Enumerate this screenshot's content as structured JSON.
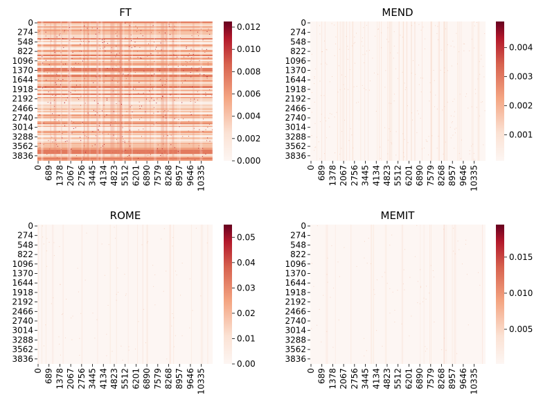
{
  "chart_data": [
    {
      "type": "heatmap",
      "title": "FT",
      "y_ticks": [
        "0",
        "274",
        "548",
        "822",
        "1096",
        "1370",
        "1644",
        "1918",
        "2192",
        "2466",
        "2740",
        "3014",
        "3288",
        "3562",
        "3836"
      ],
      "x_ticks": [
        "0",
        "689",
        "1378",
        "2067",
        "2756",
        "3445",
        "4134",
        "4823",
        "5512",
        "6201",
        "6890",
        "7579",
        "8268",
        "8957",
        "9646",
        "10335"
      ],
      "rows": 4096,
      "cols": 10900,
      "colorbar": {
        "ticks": [
          "0.000",
          "0.002",
          "0.004",
          "0.006",
          "0.008",
          "0.010",
          "0.012"
        ],
        "tick_values": [
          0,
          0.002,
          0.004,
          0.006,
          0.008,
          0.01,
          0.012
        ],
        "range": [
          0,
          0.0125
        ]
      },
      "colormap": "RdBu_r (upper half)",
      "density": "high"
    },
    {
      "type": "heatmap",
      "title": "MEND",
      "y_ticks": [
        "0",
        "274",
        "548",
        "822",
        "1096",
        "1370",
        "1644",
        "1918",
        "2192",
        "2466",
        "2740",
        "3014",
        "3288",
        "3562",
        "3836"
      ],
      "x_ticks": [
        "0",
        "689",
        "1378",
        "2067",
        "2756",
        "3445",
        "4134",
        "4823",
        "5512",
        "6201",
        "6890",
        "7579",
        "8268",
        "8957",
        "9646",
        "10335"
      ],
      "rows": 4096,
      "cols": 10900,
      "colorbar": {
        "ticks": [
          "0.001",
          "0.002",
          "0.003",
          "0.004"
        ],
        "tick_values": [
          0.001,
          0.002,
          0.003,
          0.004
        ],
        "range": [
          0.0001,
          0.0049
        ]
      },
      "colormap": "RdBu_r (upper half)",
      "density": "low"
    },
    {
      "type": "heatmap",
      "title": "ROME",
      "y_ticks": [
        "0",
        "274",
        "548",
        "822",
        "1096",
        "1370",
        "1644",
        "1918",
        "2192",
        "2466",
        "2740",
        "3014",
        "3288",
        "3562",
        "3836"
      ],
      "x_ticks": [
        "0",
        "689",
        "1378",
        "2067",
        "2756",
        "3445",
        "4134",
        "4823",
        "5512",
        "6201",
        "6890",
        "7579",
        "8268",
        "8957",
        "9646",
        "10335"
      ],
      "rows": 4096,
      "cols": 10900,
      "colorbar": {
        "ticks": [
          "0.00",
          "0.01",
          "0.02",
          "0.03",
          "0.04",
          "0.05"
        ],
        "tick_values": [
          0,
          0.01,
          0.02,
          0.03,
          0.04,
          0.05
        ],
        "range": [
          0,
          0.055
        ]
      },
      "colormap": "RdBu_r (upper half)",
      "density": "very-low"
    },
    {
      "type": "heatmap",
      "title": "MEMIT",
      "y_ticks": [
        "0",
        "274",
        "548",
        "822",
        "1096",
        "1370",
        "1644",
        "1918",
        "2192",
        "2466",
        "2740",
        "3014",
        "3288",
        "3562",
        "3836"
      ],
      "x_ticks": [
        "0",
        "689",
        "1378",
        "2067",
        "2756",
        "3445",
        "4134",
        "4823",
        "5512",
        "6201",
        "6890",
        "7579",
        "8268",
        "8957",
        "9646",
        "10335"
      ],
      "rows": 4096,
      "cols": 10900,
      "colorbar": {
        "ticks": [
          "0.005",
          "0.010",
          "0.015"
        ],
        "tick_values": [
          0.005,
          0.01,
          0.015
        ],
        "range": [
          0.0002,
          0.0195
        ]
      },
      "colormap": "RdBu_r (upper half)",
      "density": "very-low"
    }
  ],
  "colors": {
    "low": "#fdf6f3",
    "light": "#f9e0d3",
    "mid": "#f4a582",
    "strong": "#d6604d",
    "dark": "#b2182b",
    "darkest": "#67001f"
  }
}
